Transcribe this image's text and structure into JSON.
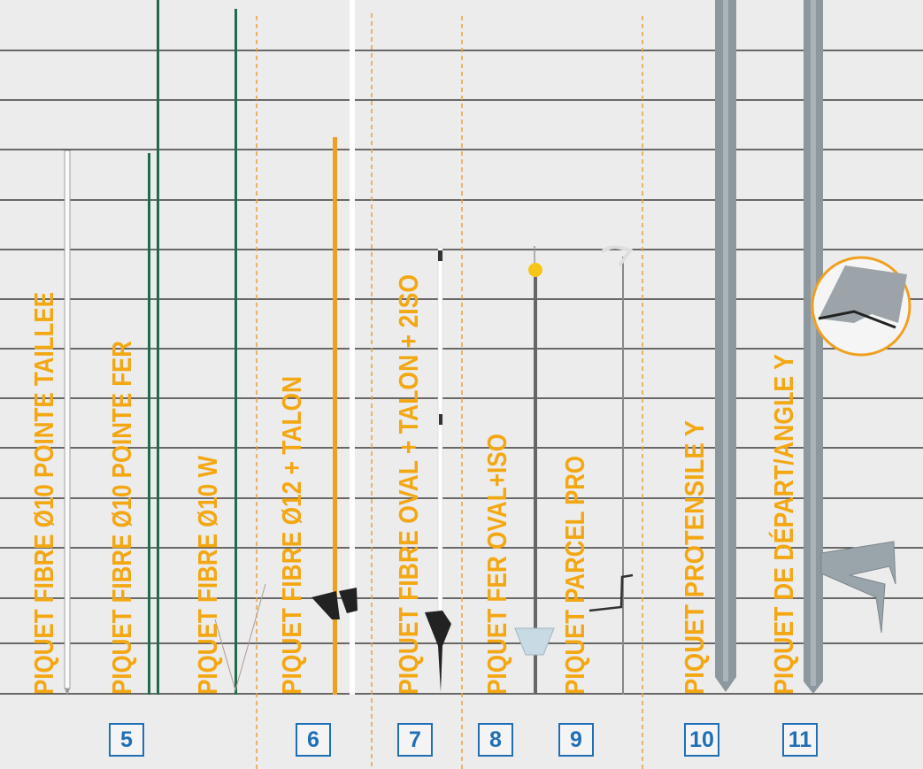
{
  "colors": {
    "background": "#ececec",
    "label": "#f3a712",
    "number_box": "#1f6fb6",
    "separator": "#e8a23a",
    "rule_line": "#1a1a1a"
  },
  "products": [
    {
      "label": "PIQUET FIBRE Ø10 POINTE TAILLEE"
    },
    {
      "label": "PIQUET FIBRE Ø10 POINTE FER"
    },
    {
      "label": "PIQUET FIBRE Ø10 W"
    },
    {
      "label": "PIQUET FIBRE Ø12 + TALON"
    },
    {
      "label": "PIQUET FIBRE OVAL + TALON + 2ISO"
    },
    {
      "label": "PIQUET FER OVAL+ISO"
    },
    {
      "label": "PIQUET PARCEL PRO"
    },
    {
      "label": "PIQUET PROTENSILE Y"
    },
    {
      "label": "PIQUET DE DÉPART/ANGLE Y"
    }
  ],
  "numbers": [
    "5",
    "6",
    "7",
    "8",
    "9",
    "10",
    "11"
  ]
}
